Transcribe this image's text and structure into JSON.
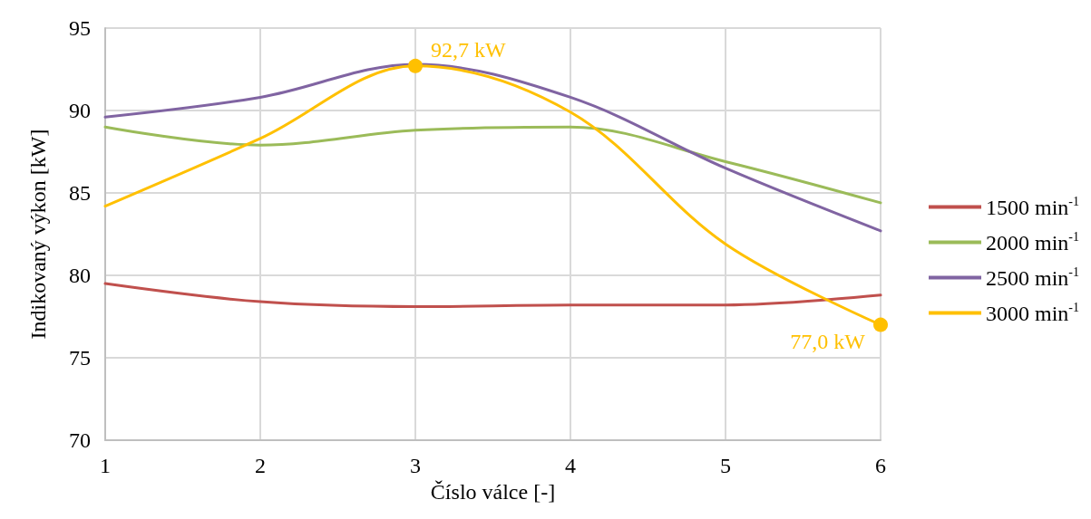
{
  "chart_data": {
    "type": "line",
    "xlabel": "Číslo válce [-]",
    "ylabel": "Indikovaný výkon [kW]",
    "x": [
      1,
      2,
      3,
      4,
      5,
      6
    ],
    "xlim": [
      1,
      6
    ],
    "xticks": [
      1,
      2,
      3,
      4,
      5,
      6
    ],
    "ylim": [
      70,
      95
    ],
    "yticks": [
      70,
      75,
      80,
      85,
      90,
      95
    ],
    "grid": true,
    "legend": "right",
    "line_style": "solid",
    "series": [
      {
        "name": "1500 min$^{-1}$",
        "color": "#c0504d",
        "values": [
          79.5,
          78.4,
          78.1,
          78.2,
          78.2,
          78.8
        ]
      },
      {
        "name": "2000 min$^{-1}$",
        "color": "#9bbb59",
        "values": [
          89.0,
          87.9,
          88.8,
          89.0,
          86.9,
          84.4
        ]
      },
      {
        "name": "2500 min$^{-1}$",
        "color": "#8064a2",
        "values": [
          89.6,
          90.8,
          92.8,
          90.8,
          86.5,
          82.7
        ]
      },
      {
        "name": "3000 min$^{-1}$",
        "color": "#ffc000",
        "values": [
          84.2,
          88.3,
          92.7,
          89.9,
          81.9,
          77.0
        ],
        "value_labels": [
          null,
          null,
          "92,7 kW",
          null,
          null,
          "77,0 kW"
        ]
      }
    ]
  }
}
